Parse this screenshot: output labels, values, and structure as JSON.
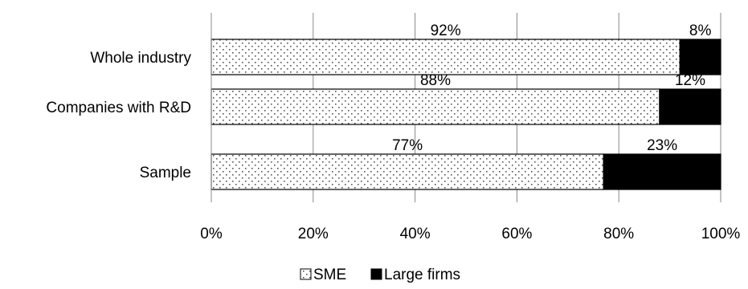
{
  "chart_data": {
    "type": "bar",
    "orientation": "horizontal",
    "stacked": "100%",
    "categories": [
      "Whole industry",
      "Companies with R&D",
      "Sample"
    ],
    "series": [
      {
        "name": "SME",
        "values": [
          92,
          88,
          77
        ],
        "labels": [
          "92%",
          "88%",
          "77%"
        ],
        "fill": "dotted-pattern",
        "color": "#ffffff"
      },
      {
        "name": "Large firms",
        "values": [
          8,
          12,
          23
        ],
        "labels": [
          "8%",
          "12%",
          "23%"
        ],
        "fill": "solid",
        "color": "#000000"
      }
    ],
    "x_ticks": [
      "0%",
      "20%",
      "40%",
      "60%",
      "80%",
      "100%"
    ],
    "xlim": [
      0,
      100
    ],
    "grid": "vertical",
    "legend_position": "bottom",
    "title": "",
    "xlabel": "",
    "ylabel": ""
  }
}
